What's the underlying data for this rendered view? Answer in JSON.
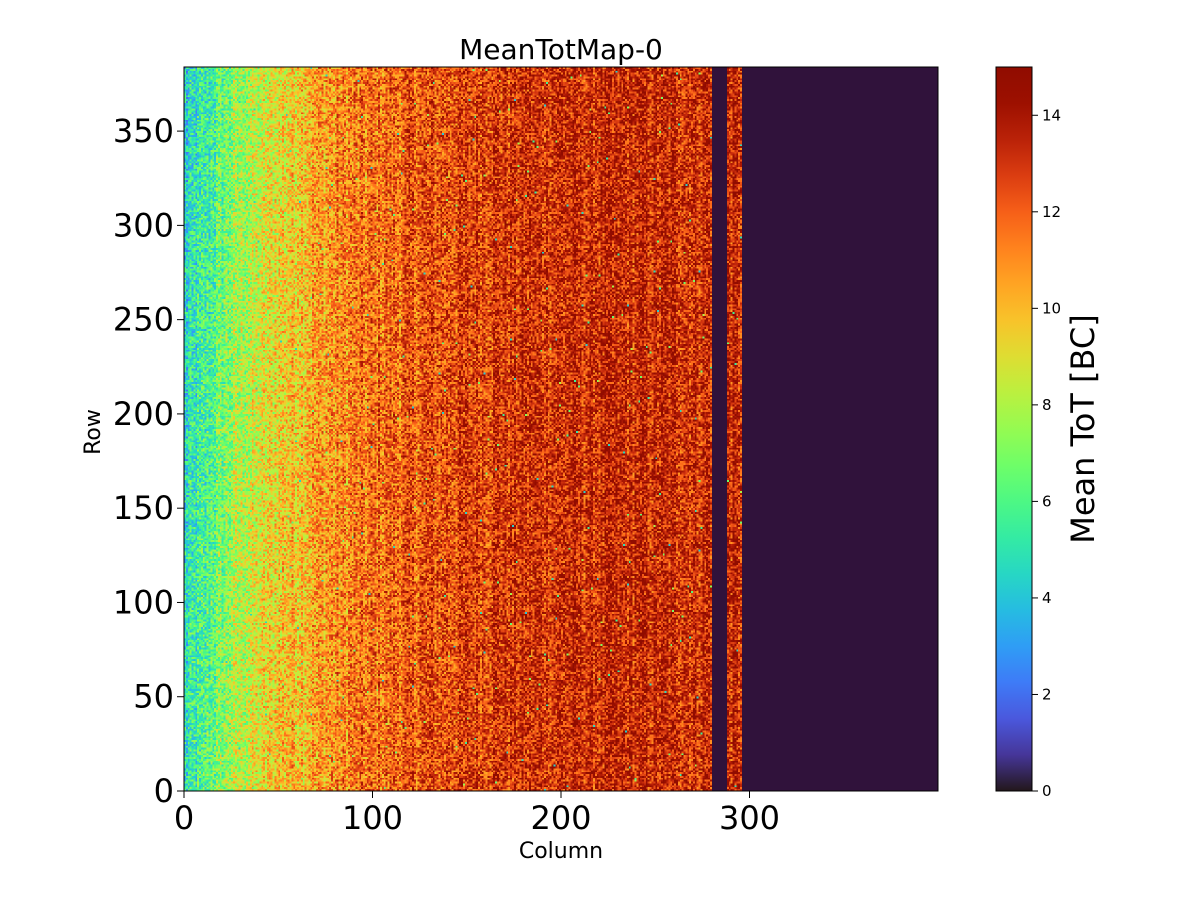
{
  "chart_data": {
    "type": "heatmap",
    "title": "MeanTotMap-0",
    "xlabel": "Column",
    "ylabel": "Row",
    "colorbar_label": "Mean ToT [BC]",
    "colormap": "turbo",
    "background_value_color": "#30123b",
    "xlim": [
      0,
      400
    ],
    "ylim": [
      0,
      384
    ],
    "x_ticks": [
      0,
      100,
      200,
      300
    ],
    "y_ticks": [
      0,
      50,
      100,
      150,
      200,
      250,
      300,
      350
    ],
    "colorbar_range": [
      0,
      15
    ],
    "colorbar_ticks": [
      0,
      2,
      4,
      6,
      8,
      10,
      12,
      14
    ],
    "columns": 400,
    "rows": 384,
    "column_profile_mean_tot": [
      {
        "column": 0,
        "value": 4.5
      },
      {
        "column": 10,
        "value": 5.5
      },
      {
        "column": 25,
        "value": 7.5
      },
      {
        "column": 50,
        "value": 9.5
      },
      {
        "column": 75,
        "value": 10.8
      },
      {
        "column": 100,
        "value": 11.6
      },
      {
        "column": 130,
        "value": 12.3
      },
      {
        "column": 160,
        "value": 12.9
      },
      {
        "column": 200,
        "value": 13.2
      },
      {
        "column": 240,
        "value": 13.3
      },
      {
        "column": 279,
        "value": 13.3
      }
    ],
    "dead_regions": [
      {
        "columns": [
          280,
          288
        ],
        "value": 0
      },
      {
        "columns": [
          296,
          400
        ],
        "value": 0
      }
    ],
    "active_regions": [
      {
        "columns": [
          0,
          280
        ]
      },
      {
        "columns": [
          288,
          296
        ]
      }
    ]
  }
}
